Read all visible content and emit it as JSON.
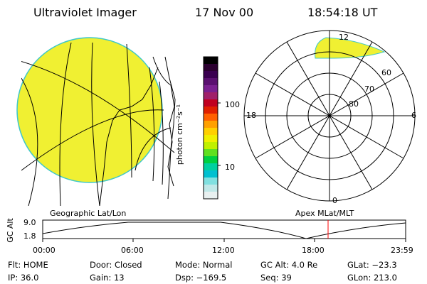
{
  "header": {
    "instrument": "Ultraviolet Imager",
    "date": "17 Nov 00",
    "time": "18:54:18 UT"
  },
  "colorbar": {
    "unit_label": "photon cm⁻²s⁻¹",
    "ticks": [
      "100",
      "10"
    ],
    "colors": [
      "#000000",
      "#2b0030",
      "#3a0050",
      "#5a1070",
      "#7a2090",
      "#a0206a",
      "#c00020",
      "#e02000",
      "#ff6000",
      "#ffa000",
      "#ffd000",
      "#f0f000",
      "#c0f000",
      "#60e020",
      "#00d040",
      "#00d0a0",
      "#00c0d0",
      "#80e0e0",
      "#c0e8e8",
      "#e8f0f0"
    ]
  },
  "left_panel": {
    "label": "Geographic Lat/Lon",
    "fill_color": "#f0f032"
  },
  "right_panel": {
    "label": "Apex MLat/MLT",
    "mlt_labels": {
      "top": "12",
      "left": "18",
      "right": "6",
      "bottom": "0"
    },
    "mlat_labels": [
      "60",
      "70",
      "80"
    ],
    "aurora_color": "#f0f032"
  },
  "altitude_plot": {
    "ylabel": "GC Alt",
    "y_ticks": [
      "9.0",
      "1.8"
    ],
    "x_ticks": [
      "00:00",
      "06:00",
      "12:00",
      "18:00",
      "23:59"
    ],
    "current_time_marker_color": "#ff0000"
  },
  "status": {
    "flt": "Flt: HOME",
    "ip": "IP: 36.0",
    "door": "Door: Closed",
    "gain": "Gain: 13",
    "mode": "Mode: Normal",
    "dsp": "Dsp: −169.5",
    "gc_alt": "GC Alt: 4.0 Re",
    "seq": "Seq: 39",
    "glat": "GLat: −23.3",
    "glon": "GLon: 213.0"
  }
}
